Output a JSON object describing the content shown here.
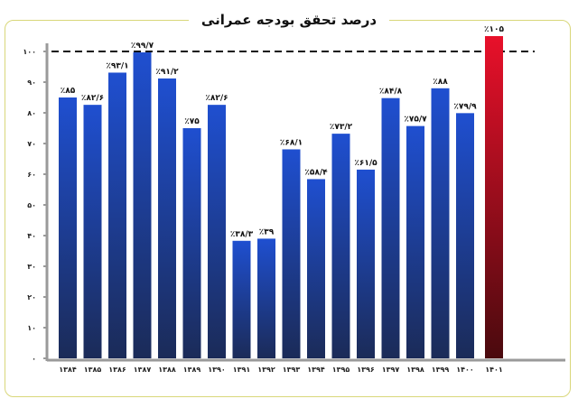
{
  "chart_data": {
    "type": "bar",
    "title": "درصد تحقق بودجه عمرانی",
    "categories": [
      "۱۳۸۴",
      "۱۳۸۵",
      "۱۳۸۶",
      "۱۳۸۷",
      "۱۳۸۸",
      "۱۳۸۹",
      "۱۳۹۰",
      "۱۳۹۱",
      "۱۳۹۲",
      "۱۳۹۳",
      "۱۳۹۴",
      "۱۳۹۵",
      "۱۳۹۶",
      "۱۳۹۷",
      "۱۳۹۸",
      "۱۳۹۹",
      "۱۴۰۰",
      "۱۴۰۱"
    ],
    "values": [
      85,
      82.6,
      93.1,
      99.7,
      91.2,
      75,
      82.6,
      38.3,
      39,
      68.1,
      58.4,
      73.2,
      61.5,
      84.8,
      75.7,
      88,
      79.9,
      105
    ],
    "data_labels": [
      "٪۸۵",
      "٪۸۲/۶",
      "٪۹۳/۱",
      "٪۹۹/۷",
      "٪۹۱/۲",
      "٪۷۵",
      "٪۸۲/۶",
      "٪۳۸/۳",
      "٪۳۹",
      "٪۶۸/۱",
      "٪۵۸/۴",
      "٪۷۳/۲",
      "٪۶۱/۵",
      "٪۸۴/۸",
      "٪۷۵/۷",
      "٪۸۸",
      "٪۷۹/۹",
      "٪۱۰۵"
    ],
    "ylim": [
      0,
      100
    ],
    "yticks": [
      0,
      10,
      20,
      30,
      40,
      50,
      60,
      70,
      80,
      90,
      100
    ],
    "ytick_labels": [
      "۰",
      "۱۰",
      "۲۰",
      "۳۰",
      "۴۰",
      "۵۰",
      "۶۰",
      "۷۰",
      "۸۰",
      "۹۰",
      "۱۰۰"
    ],
    "reference_line": 100,
    "grid": false,
    "colors": {
      "bar_top": "#1f4fd0",
      "bar_bottom": "#1b2b58",
      "highlight_top": "#e8102a",
      "highlight_bottom": "#4a0a0e",
      "axis": "#9a9a9a"
    }
  }
}
